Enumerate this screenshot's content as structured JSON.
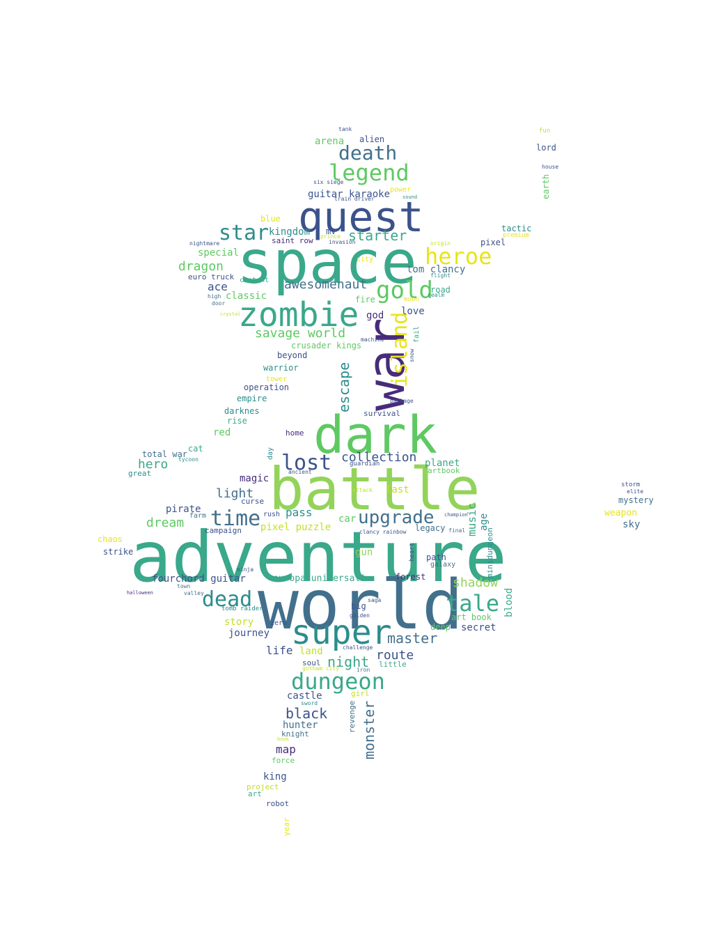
{
  "palette": {
    "deep_purple": "#472c7a",
    "purple": "#3b528b",
    "slate": "#42708c",
    "teal": "#2c8c8c",
    "sea": "#3aa88a",
    "green": "#5ec962",
    "light_green": "#93d35a",
    "yellow_green": "#c2df23",
    "yellow": "#e8e419"
  },
  "words": [
    {
      "text": "adventure",
      "color": "sea"
    },
    {
      "text": "world",
      "color": "slate"
    },
    {
      "text": "space",
      "color": "sea"
    },
    {
      "text": "battle",
      "color": "light_green"
    },
    {
      "text": "dark",
      "color": "green"
    },
    {
      "text": "war",
      "color": "deep_purple"
    },
    {
      "text": "quest",
      "color": "purple"
    },
    {
      "text": "zombie",
      "color": "sea"
    },
    {
      "text": "super",
      "color": "teal"
    },
    {
      "text": "island",
      "color": "yellow"
    },
    {
      "text": "legend",
      "color": "green"
    },
    {
      "text": "death",
      "color": "slate"
    },
    {
      "text": "heroe",
      "color": "yellow"
    },
    {
      "text": "gold",
      "color": "green"
    },
    {
      "text": "star",
      "color": "teal"
    },
    {
      "text": "dungeon",
      "color": "sea"
    },
    {
      "text": "tale",
      "color": "sea"
    },
    {
      "text": "time",
      "color": "slate"
    },
    {
      "text": "upgrade",
      "color": "slate"
    },
    {
      "text": "lost",
      "color": "purple"
    },
    {
      "text": "dead",
      "color": "teal"
    },
    {
      "text": "starter",
      "color": "sea"
    },
    {
      "text": "awesomenaut",
      "color": "slate"
    },
    {
      "text": "savage world",
      "color": "green"
    },
    {
      "text": "collection",
      "color": "purple"
    },
    {
      "text": "escape",
      "color": "teal"
    },
    {
      "text": "monster",
      "color": "slate"
    },
    {
      "text": "master",
      "color": "slate"
    },
    {
      "text": "night",
      "color": "sea"
    },
    {
      "text": "route",
      "color": "purple"
    },
    {
      "text": "black",
      "color": "purple"
    },
    {
      "text": "dragon",
      "color": "green"
    },
    {
      "text": "shadow",
      "color": "light_green"
    },
    {
      "text": "hero",
      "color": "sea"
    },
    {
      "text": "dream",
      "color": "green"
    },
    {
      "text": "light",
      "color": "slate"
    },
    {
      "text": "music",
      "color": "sea"
    },
    {
      "text": "pass",
      "color": "teal"
    },
    {
      "text": "last",
      "color": "yellow_green"
    },
    {
      "text": "guitar karaoke",
      "color": "purple"
    },
    {
      "text": "special",
      "color": "green"
    },
    {
      "text": "ace",
      "color": "purple"
    },
    {
      "text": "classic",
      "color": "green"
    },
    {
      "text": "kingdom",
      "color": "teal"
    },
    {
      "text": "saint row",
      "color": "deep_purple"
    },
    {
      "text": "tom clancy",
      "color": "slate"
    },
    {
      "text": "pixel",
      "color": "purple"
    },
    {
      "text": "tactic",
      "color": "teal"
    },
    {
      "text": "lord",
      "color": "purple"
    },
    {
      "text": "earth",
      "color": "green"
    },
    {
      "text": "arena",
      "color": "green"
    },
    {
      "text": "alien",
      "color": "purple"
    },
    {
      "text": "love",
      "color": "purple"
    },
    {
      "text": "god",
      "color": "deep_purple"
    },
    {
      "text": "fire",
      "color": "green"
    },
    {
      "text": "road",
      "color": "sea"
    },
    {
      "text": "crusader kings",
      "color": "green"
    },
    {
      "text": "beyond",
      "color": "purple"
    },
    {
      "text": "warrior",
      "color": "teal"
    },
    {
      "text": "operation",
      "color": "purple"
    },
    {
      "text": "empire",
      "color": "teal"
    },
    {
      "text": "darknes",
      "color": "teal"
    },
    {
      "text": "rise",
      "color": "sea"
    },
    {
      "text": "red",
      "color": "green"
    },
    {
      "text": "home",
      "color": "deep_purple"
    },
    {
      "text": "survival",
      "color": "purple"
    },
    {
      "text": "planet",
      "color": "sea"
    },
    {
      "text": "artbook",
      "color": "green"
    },
    {
      "text": "magic",
      "color": "deep_purple"
    },
    {
      "text": "pirate",
      "color": "purple"
    },
    {
      "text": "total war",
      "color": "slate"
    },
    {
      "text": "cat",
      "color": "sea"
    },
    {
      "text": "great",
      "color": "teal"
    },
    {
      "text": "campaign",
      "color": "purple"
    },
    {
      "text": "pixel puzzle",
      "color": "yellow_green"
    },
    {
      "text": "legacy",
      "color": "slate"
    },
    {
      "text": "age",
      "color": "teal"
    },
    {
      "text": "car",
      "color": "green"
    },
    {
      "text": "gun",
      "color": "light_green"
    },
    {
      "text": "path",
      "color": "purple"
    },
    {
      "text": "galaxy",
      "color": "slate"
    },
    {
      "text": "minidungeon",
      "color": "teal"
    },
    {
      "text": "forest",
      "color": "deep_purple"
    },
    {
      "text": "europa universali",
      "color": "sea"
    },
    {
      "text": "fourchord guitar",
      "color": "purple"
    },
    {
      "text": "strike",
      "color": "purple"
    },
    {
      "text": "chaos",
      "color": "yellow"
    },
    {
      "text": "blood",
      "color": "sea"
    },
    {
      "text": "art book",
      "color": "green"
    },
    {
      "text": "secret",
      "color": "purple"
    },
    {
      "text": "deep",
      "color": "green"
    },
    {
      "text": "big",
      "color": "purple"
    },
    {
      "text": "story",
      "color": "yellow_green"
    },
    {
      "text": "journey",
      "color": "purple"
    },
    {
      "text": "life",
      "color": "purple"
    },
    {
      "text": "land",
      "color": "yellow_green"
    },
    {
      "text": "soul",
      "color": "purple"
    },
    {
      "text": "little",
      "color": "sea"
    },
    {
      "text": "castle",
      "color": "purple"
    },
    {
      "text": "girl",
      "color": "yellow_green"
    },
    {
      "text": "hunter",
      "color": "slate"
    },
    {
      "text": "knight",
      "color": "slate"
    },
    {
      "text": "map",
      "color": "deep_purple"
    },
    {
      "text": "force",
      "color": "green"
    },
    {
      "text": "revenge",
      "color": "slate"
    },
    {
      "text": "king",
      "color": "purple"
    },
    {
      "text": "project",
      "color": "yellow_green"
    },
    {
      "text": "art",
      "color": "sea"
    },
    {
      "text": "robot",
      "color": "purple"
    },
    {
      "text": "year",
      "color": "yellow"
    },
    {
      "text": "mystery",
      "color": "slate"
    },
    {
      "text": "weapon",
      "color": "yellow"
    },
    {
      "text": "sky",
      "color": "slate"
    },
    {
      "text": "euro truck",
      "color": "purple"
    },
    {
      "text": "blue",
      "color": "yellow"
    },
    {
      "text": "content",
      "color": "sea"
    },
    {
      "text": "tower",
      "color": "yellow"
    },
    {
      "text": "rush",
      "color": "purple"
    },
    {
      "text": "zero",
      "color": "purple"
    },
    {
      "text": "curse",
      "color": "purple"
    },
    {
      "text": "farm",
      "color": "slate"
    },
    {
      "text": "mv",
      "color": "purple"
    },
    {
      "text": "power",
      "color": "yellow"
    },
    {
      "text": "fail",
      "color": "sea"
    },
    {
      "text": "package",
      "color": "purple"
    },
    {
      "text": "city",
      "color": "yellow"
    },
    {
      "text": "heart",
      "color": "purple"
    },
    {
      "text": "tank",
      "color": "purple"
    },
    {
      "text": "fun",
      "color": "yellow_green"
    },
    {
      "text": "house",
      "color": "purple"
    },
    {
      "text": "six siege",
      "color": "purple"
    },
    {
      "text": "train driver",
      "color": "purple"
    },
    {
      "text": "invasion",
      "color": "purple"
    },
    {
      "text": "flight",
      "color": "teal"
    },
    {
      "text": "origin",
      "color": "yellow_green"
    },
    {
      "text": "realm",
      "color": "teal"
    },
    {
      "text": "nightmare",
      "color": "purple"
    },
    {
      "text": "high",
      "color": "slate"
    },
    {
      "text": "door",
      "color": "slate"
    },
    {
      "text": "prince",
      "color": "yellow_green"
    },
    {
      "text": "machine",
      "color": "purple"
    },
    {
      "text": "ninja",
      "color": "purple"
    },
    {
      "text": "tomb raider",
      "color": "teal"
    },
    {
      "text": "challenge",
      "color": "purple"
    },
    {
      "text": "golden",
      "color": "purple"
    },
    {
      "text": "saga",
      "color": "purple"
    },
    {
      "text": "iron",
      "color": "slate"
    },
    {
      "text": "sword",
      "color": "teal"
    },
    {
      "text": "town",
      "color": "slate"
    },
    {
      "text": "valley",
      "color": "slate"
    },
    {
      "text": "halloween",
      "color": "deep_purple"
    },
    {
      "text": "storm",
      "color": "purple"
    },
    {
      "text": "elite",
      "color": "purple"
    },
    {
      "text": "day",
      "color": "teal"
    },
    {
      "text": "guardian",
      "color": "purple"
    },
    {
      "text": "final",
      "color": "slate"
    },
    {
      "text": "champion",
      "color": "purple"
    },
    {
      "text": "moon",
      "color": "yellow"
    },
    {
      "text": "ancient",
      "color": "purple"
    },
    {
      "text": "crystal",
      "color": "yellow_green"
    },
    {
      "text": "sound",
      "color": "teal"
    },
    {
      "text": "premium",
      "color": "yellow"
    },
    {
      "text": "gotham city",
      "color": "yellow_green"
    },
    {
      "text": "tycoon",
      "color": "teal"
    },
    {
      "text": "clancy rainbow",
      "color": "purple"
    },
    {
      "text": "attack",
      "color": "yellow_green"
    },
    {
      "text": "book",
      "color": "yellow_green"
    },
    {
      "text": "snow",
      "color": "purple"
    }
  ]
}
